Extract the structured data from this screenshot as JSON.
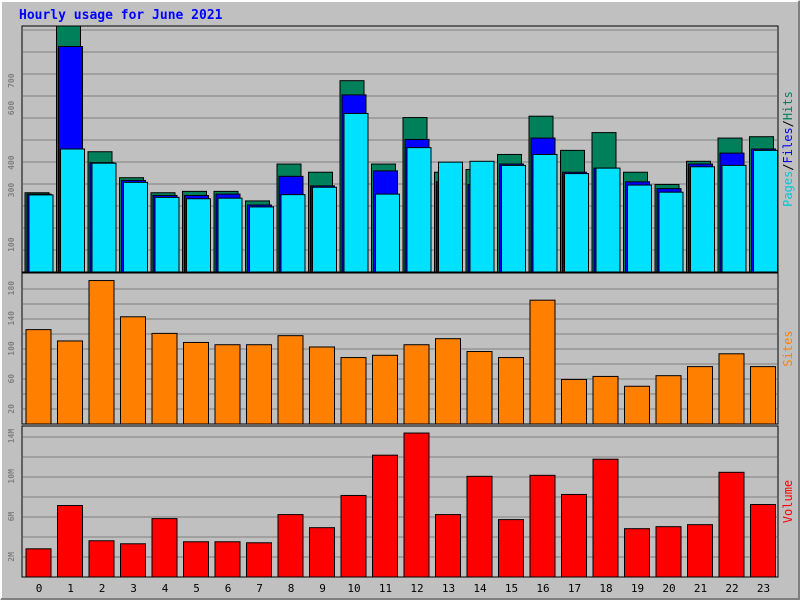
{
  "chart_data": [
    {
      "type": "bar",
      "title": "Hourly usage for June 2021",
      "side_label": [
        {
          "text": "Pages",
          "color": "#00c8d8"
        },
        {
          "text": "/",
          "color": "#000000"
        },
        {
          "text": "Files",
          "color": "#0000ff"
        },
        {
          "text": "/",
          "color": "#000000"
        },
        {
          "text": "Hits",
          "color": "#00805a"
        }
      ],
      "ylim": [
        0,
        900
      ],
      "yticks": [
        100,
        300,
        400,
        600,
        700
      ],
      "ytick_labels": [
        "100",
        "300",
        "400",
        "600",
        "700"
      ],
      "categories": [
        "0",
        "1",
        "2",
        "3",
        "4",
        "5",
        "6",
        "7",
        "8",
        "9",
        "10",
        "11",
        "12",
        "13",
        "14",
        "15",
        "16",
        "17",
        "18",
        "19",
        "20",
        "21",
        "22",
        "23"
      ],
      "series": [
        {
          "name": "Hits",
          "color": "#00805a",
          "values": [
            290,
            900,
            440,
            345,
            290,
            295,
            295,
            260,
            395,
            365,
            700,
            395,
            565,
            365,
            375,
            430,
            570,
            445,
            510,
            365,
            320,
            405,
            490,
            495
          ]
        },
        {
          "name": "Files",
          "color": "#0000ff",
          "values": [
            285,
            825,
            400,
            335,
            280,
            280,
            285,
            245,
            350,
            315,
            648,
            370,
            485,
            330,
            320,
            395,
            490,
            365,
            380,
            330,
            305,
            395,
            435,
            450
          ]
        },
        {
          "name": "Pages",
          "color": "#00e0ff",
          "values": [
            282,
            450,
            398,
            328,
            273,
            268,
            270,
            238,
            283,
            310,
            580,
            285,
            455,
            402,
            405,
            390,
            430,
            360,
            380,
            318,
            292,
            385,
            390,
            445
          ]
        }
      ]
    },
    {
      "type": "bar",
      "side_label": [
        {
          "text": "Sites",
          "color": "#ff8000"
        }
      ],
      "ylim": [
        0,
        200
      ],
      "yticks": [
        20,
        60,
        100,
        140,
        180
      ],
      "ytick_labels": [
        "20",
        "60",
        "100",
        "140",
        "180"
      ],
      "categories": [
        "0",
        "1",
        "2",
        "3",
        "4",
        "5",
        "6",
        "7",
        "8",
        "9",
        "10",
        "11",
        "12",
        "13",
        "14",
        "15",
        "16",
        "17",
        "18",
        "19",
        "20",
        "21",
        "22",
        "23"
      ],
      "series": [
        {
          "name": "Sites",
          "color": "#ff8000",
          "values": [
            125,
            110,
            190,
            142,
            120,
            108,
            105,
            105,
            117,
            102,
            88,
            91,
            105,
            113,
            96,
            88,
            164,
            59,
            63,
            50,
            64,
            76,
            93,
            76
          ]
        }
      ]
    },
    {
      "type": "bar",
      "side_label": [
        {
          "text": "Volume",
          "color": "#ff0000"
        }
      ],
      "ylim": [
        0,
        15
      ],
      "yticks": [
        2,
        6,
        10,
        14
      ],
      "ytick_labels": [
        "2M",
        "6M",
        "10M",
        "14M"
      ],
      "categories": [
        "0",
        "1",
        "2",
        "3",
        "4",
        "5",
        "6",
        "7",
        "8",
        "9",
        "10",
        "11",
        "12",
        "13",
        "14",
        "15",
        "16",
        "17",
        "18",
        "19",
        "20",
        "21",
        "22",
        "23"
      ],
      "series": [
        {
          "name": "Volume",
          "color": "#ff0000",
          "values": [
            2.8,
            7.1,
            3.6,
            3.3,
            5.8,
            3.5,
            3.5,
            3.4,
            6.2,
            4.9,
            8.1,
            12.1,
            14.3,
            6.2,
            10.0,
            5.7,
            10.1,
            8.2,
            11.7,
            4.8,
            5.0,
            5.2,
            10.4,
            7.2
          ]
        }
      ]
    }
  ]
}
